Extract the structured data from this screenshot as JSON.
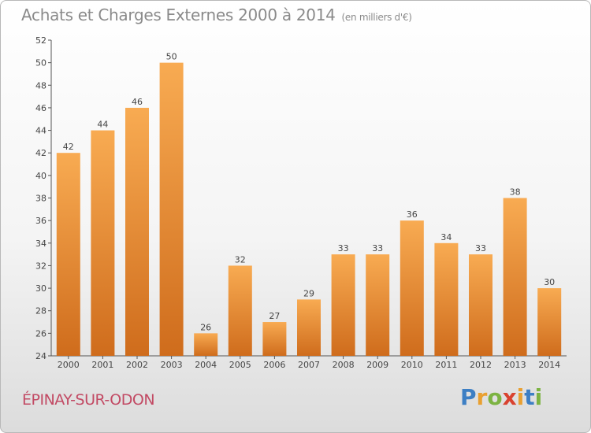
{
  "title": "Achats et Charges Externes 2000 à 2014",
  "title_unit": "(en milliers d'€)",
  "city": "ÉPINAY-SUR-ODON",
  "logo": "Proxiti",
  "colors": {
    "bar_light": "#f7a84e",
    "bar_dark": "#cf6c1c",
    "title": "#8a8a8a",
    "city": "#c24a64"
  },
  "chart_data": {
    "type": "bar",
    "categories": [
      "2000",
      "2001",
      "2002",
      "2003",
      "2004",
      "2005",
      "2006",
      "2007",
      "2008",
      "2009",
      "2010",
      "2011",
      "2012",
      "2013",
      "2014"
    ],
    "values": [
      42,
      44,
      46,
      50,
      26,
      32,
      27,
      29,
      33,
      33,
      36,
      34,
      33,
      38,
      30
    ],
    "title": "Achats et Charges Externes 2000 à 2014",
    "xlabel": "",
    "ylabel": "",
    "ylim": [
      24,
      52
    ],
    "yticks": [
      24,
      26,
      28,
      30,
      32,
      34,
      36,
      38,
      40,
      42,
      44,
      46,
      48,
      50,
      52
    ],
    "grid": false,
    "legend": "none"
  }
}
